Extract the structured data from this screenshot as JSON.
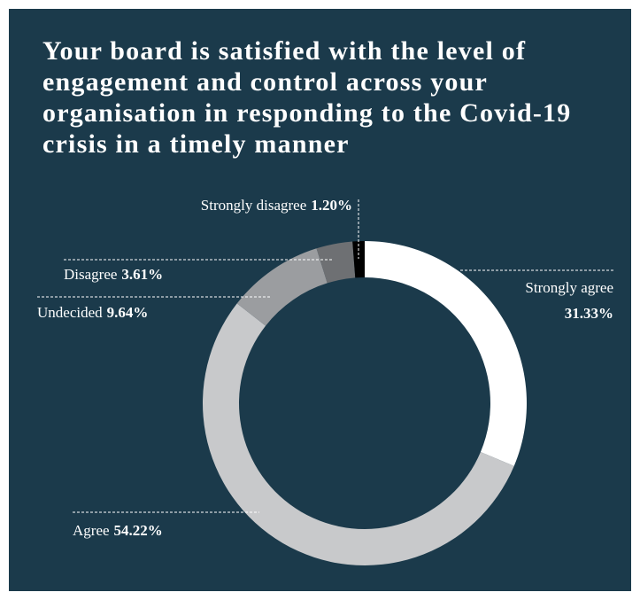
{
  "chart_data": {
    "type": "donut",
    "title": "Your board is satisfied with the level of engagement and control across your organisation in responding to the Covid-19 crisis in a timely manner",
    "categories": [
      "Strongly agree",
      "Agree",
      "Undecided",
      "Disagree",
      "Strongly disagree"
    ],
    "values": [
      31.33,
      54.22,
      9.64,
      3.61,
      1.2
    ],
    "value_labels": [
      "31.33%",
      "54.22%",
      "9.64%",
      "3.61%",
      "1.20%"
    ],
    "colors": [
      "#ffffff",
      "#c8c9cb",
      "#9b9d a0",
      "#6e7073",
      "#000000"
    ]
  }
}
